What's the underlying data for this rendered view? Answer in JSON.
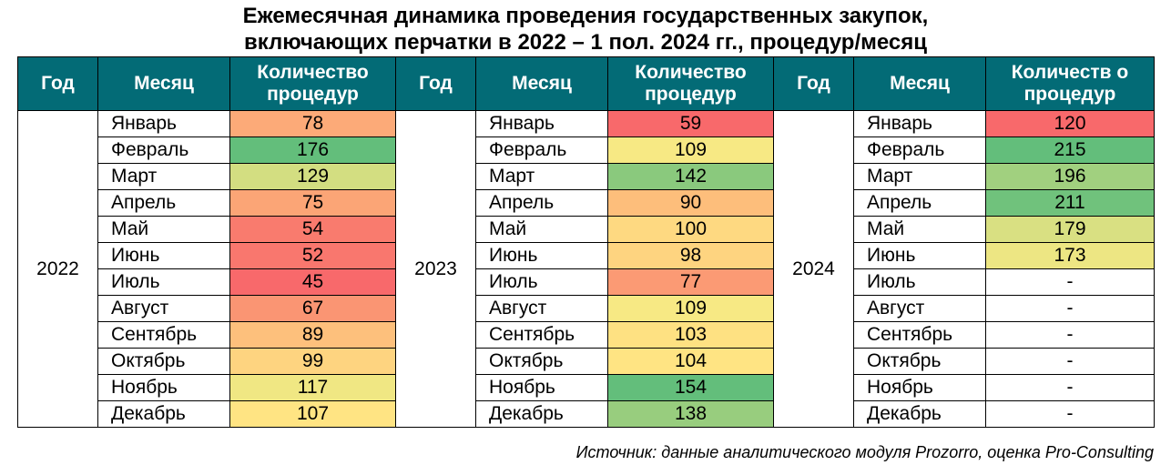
{
  "title": {
    "line1": "Ежемесячная динамика проведения государственных закупок,",
    "line2": "включающих перчатки в 2022 – 1 пол. 2024 гг., процедур/месяц"
  },
  "headers": {
    "year": "Год",
    "month": "Месяц",
    "count_2022": "Количество процедур",
    "count_2023": "Количество процедур",
    "count_2024": "Количеств о процедур"
  },
  "colors": {
    "header_bg": "#036b76",
    "header_text": "#ffffff",
    "scale_low": "#f8696b",
    "scale_mid": "#ffeb84",
    "scale_high": "#63be7b"
  },
  "source": "Источник: данные аналитического модуля Prozorro, оценка Pro-Consulting",
  "chart_data": {
    "type": "table",
    "title": "Ежемесячная динамика проведения государственных закупок, включающих перчатки в 2022 – 1 пол. 2024 гг., процедур/месяц",
    "months": [
      "Январь",
      "Февраль",
      "Март",
      "Апрель",
      "Май",
      "Июнь",
      "Июль",
      "Август",
      "Сентябрь",
      "Октябрь",
      "Ноябрь",
      "Декабрь"
    ],
    "series": [
      {
        "name": "2022",
        "values": [
          78,
          176,
          129,
          75,
          54,
          52,
          45,
          67,
          89,
          99,
          117,
          107
        ],
        "color_range": [
          45,
          176
        ],
        "display": [
          "78",
          "176",
          "129",
          "75",
          "54",
          "52",
          "45",
          "67",
          "89",
          "99",
          "117",
          "107"
        ]
      },
      {
        "name": "2023",
        "values": [
          59,
          109,
          142,
          90,
          100,
          98,
          77,
          109,
          103,
          104,
          154,
          138
        ],
        "color_range": [
          59,
          154
        ],
        "display": [
          "59",
          "109",
          "142",
          "90",
          "100",
          "98",
          "77",
          "109",
          "103",
          "104",
          "154",
          "138"
        ]
      },
      {
        "name": "2024",
        "values": [
          120,
          215,
          196,
          211,
          179,
          173,
          null,
          null,
          null,
          null,
          null,
          null
        ],
        "color_range": [
          120,
          215
        ],
        "display": [
          "120",
          "215",
          "196",
          "211",
          "179",
          "173",
          "-",
          "-",
          "-",
          "-",
          "-",
          "-"
        ]
      }
    ]
  }
}
